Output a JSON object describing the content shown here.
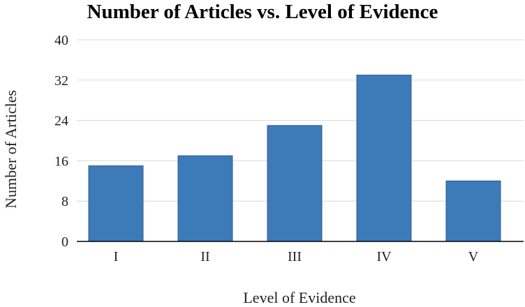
{
  "chart_data": {
    "type": "bar",
    "title": "Number of Articles vs. Level of Evidence",
    "xlabel": "Level of Evidence",
    "ylabel": "Number of Articles",
    "categories": [
      "I",
      "II",
      "III",
      "IV",
      "V"
    ],
    "values": [
      15,
      17,
      23,
      33,
      12
    ],
    "ylim": [
      0,
      40
    ],
    "yticks": [
      "0",
      "8",
      "16",
      "24",
      "32",
      "40"
    ],
    "grid": true,
    "legend": "none",
    "bar_color": "#3d7ab8",
    "bar_edge_color": "#2d5f93"
  }
}
